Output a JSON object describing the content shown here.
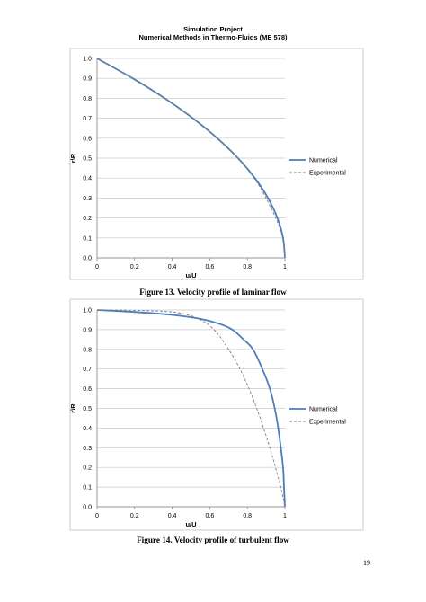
{
  "header": {
    "line1": "Simulation Project",
    "line2": "Numerical Methods in Thermo-Fluids (ME 578)"
  },
  "page_number": "19",
  "chart_data": [
    {
      "type": "line",
      "caption": "Figure 13. Velocity profile of laminar flow",
      "xlabel": "u/U",
      "ylabel": "r\\R",
      "xlim": [
        0,
        1
      ],
      "ylim": [
        0,
        1
      ],
      "x_ticks": [
        "0",
        "0.2",
        "0.4",
        "0.6",
        "0.8",
        "1"
      ],
      "y_ticks": [
        "0.0",
        "0.1",
        "0.2",
        "0.3",
        "0.4",
        "0.5",
        "0.6",
        "0.7",
        "0.8",
        "0.9",
        "1.0"
      ],
      "grid": "horizontal",
      "legend": "right",
      "series": [
        {
          "name": "Numerical",
          "color": "#4a7ebb",
          "style": "solid",
          "points": [
            [
              0,
              1
            ],
            [
              0.19,
              0.9
            ],
            [
              0.36,
              0.8
            ],
            [
              0.51,
              0.7
            ],
            [
              0.64,
              0.6
            ],
            [
              0.75,
              0.5
            ],
            [
              0.84,
              0.4
            ],
            [
              0.91,
              0.3
            ],
            [
              0.96,
              0.2
            ],
            [
              0.99,
              0.1
            ],
            [
              1,
              0
            ]
          ]
        },
        {
          "name": "Experimental",
          "color": "#7f7f7f",
          "style": "dashed",
          "points": [
            [
              0,
              1
            ],
            [
              0.19,
              0.9
            ],
            [
              0.36,
              0.8
            ],
            [
              0.51,
              0.7
            ],
            [
              0.64,
              0.6
            ],
            [
              0.76,
              0.49
            ],
            [
              0.85,
              0.38
            ],
            [
              0.91,
              0.28
            ],
            [
              0.96,
              0.18
            ],
            [
              0.99,
              0.09
            ],
            [
              1,
              0
            ]
          ]
        }
      ]
    },
    {
      "type": "line",
      "caption": "Figure 14. Velocity profile of turbulent flow",
      "xlabel": "u/U",
      "ylabel": "r\\R",
      "xlim": [
        0,
        1
      ],
      "ylim": [
        0,
        1
      ],
      "x_ticks": [
        "0",
        "0.2",
        "0.4",
        "0.6",
        "0.8",
        "1"
      ],
      "y_ticks": [
        "0.0",
        "0.1",
        "0.2",
        "0.3",
        "0.4",
        "0.5",
        "0.6",
        "0.7",
        "0.8",
        "0.9",
        "1.0"
      ],
      "grid": "horizontal",
      "legend": "right",
      "series": [
        {
          "name": "Numerical",
          "color": "#4a7ebb",
          "style": "solid",
          "points": [
            [
              0,
              1
            ],
            [
              0.2,
              0.99
            ],
            [
              0.4,
              0.975
            ],
            [
              0.55,
              0.955
            ],
            [
              0.65,
              0.93
            ],
            [
              0.72,
              0.9
            ],
            [
              0.78,
              0.85
            ],
            [
              0.83,
              0.8
            ],
            [
              0.88,
              0.7
            ],
            [
              0.92,
              0.6
            ],
            [
              0.95,
              0.48
            ],
            [
              0.97,
              0.36
            ],
            [
              0.99,
              0.2
            ],
            [
              0.995,
              0.1
            ],
            [
              1,
              0
            ]
          ]
        },
        {
          "name": "Experimental",
          "color": "#7f7f7f",
          "style": "dashed",
          "points": [
            [
              0,
              1
            ],
            [
              0.2,
              0.998
            ],
            [
              0.4,
              0.99
            ],
            [
              0.5,
              0.97
            ],
            [
              0.55,
              0.95
            ],
            [
              0.6,
              0.92
            ],
            [
              0.65,
              0.87
            ],
            [
              0.7,
              0.8
            ],
            [
              0.75,
              0.72
            ],
            [
              0.8,
              0.62
            ],
            [
              0.85,
              0.5
            ],
            [
              0.9,
              0.36
            ],
            [
              0.95,
              0.2
            ],
            [
              0.98,
              0.09
            ],
            [
              1,
              0
            ]
          ]
        }
      ]
    }
  ]
}
